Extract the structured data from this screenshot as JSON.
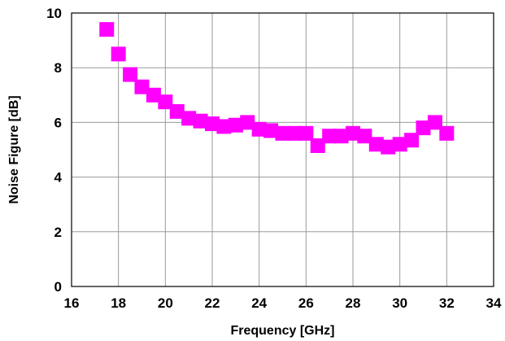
{
  "chart_data": {
    "type": "scatter",
    "title": "",
    "xlabel": "Frequency [GHz]",
    "ylabel": "Noise Figure [dB]",
    "xlim": [
      16,
      34
    ],
    "ylim": [
      0,
      10
    ],
    "x_ticks": [
      16,
      18,
      20,
      22,
      24,
      26,
      28,
      30,
      32,
      34
    ],
    "y_ticks": [
      0,
      2,
      4,
      6,
      8,
      10
    ],
    "grid": true,
    "marker": "square",
    "color": "#ff00ff",
    "series": [
      {
        "x": [
          17.5,
          18.0,
          18.5,
          19.0,
          19.5,
          20.0,
          20.5,
          21.0,
          21.5,
          22.0,
          22.5,
          23.0,
          23.5,
          24.0,
          24.5,
          25.0,
          25.5,
          26.0,
          26.5,
          27.0,
          27.5,
          28.0,
          28.5,
          29.0,
          29.5,
          30.0,
          30.5,
          31.0,
          31.5,
          32.0
        ],
        "y": [
          9.4,
          8.5,
          7.75,
          7.3,
          7.0,
          6.75,
          6.4,
          6.15,
          6.05,
          5.95,
          5.85,
          5.9,
          6.0,
          5.75,
          5.7,
          5.6,
          5.6,
          5.6,
          5.15,
          5.5,
          5.5,
          5.6,
          5.5,
          5.2,
          5.1,
          5.2,
          5.35,
          5.8,
          6.0,
          5.6
        ]
      }
    ]
  }
}
